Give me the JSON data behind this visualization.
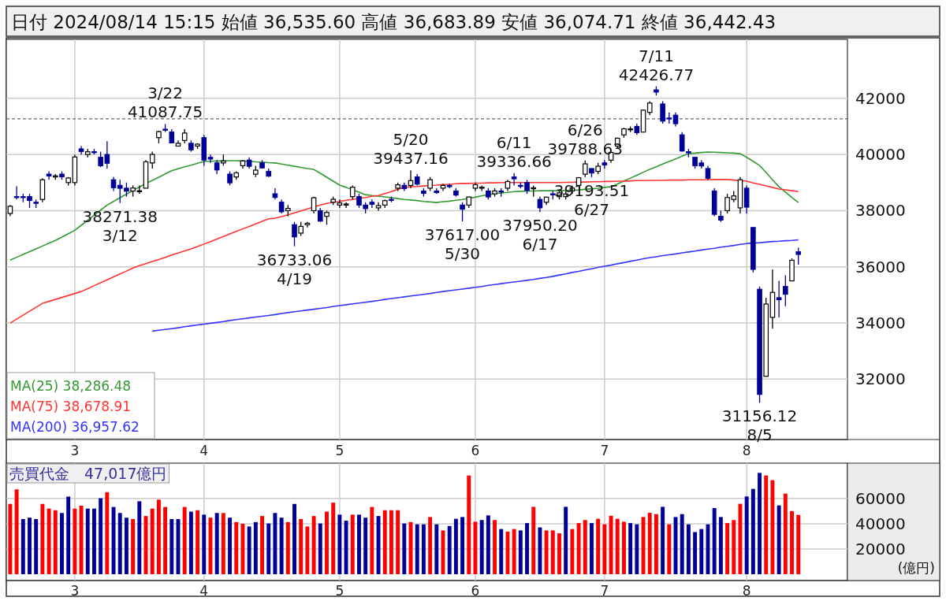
{
  "chart_data": [
    {
      "type": "candlestick",
      "title": "日付 2024/08/14 15:15 始値 36,535.60 高値 36,683.89 安値 36,074.71 終値 36,442.43",
      "categories": [
        null,
        null,
        null,
        null,
        null,
        null,
        null,
        null,
        null,
        null,
        "3",
        null,
        null,
        null,
        null,
        null,
        null,
        null,
        null,
        null,
        null,
        null,
        null,
        null,
        null,
        null,
        null,
        null,
        null,
        null,
        "4",
        null,
        null,
        null,
        null,
        null,
        null,
        null,
        null,
        null,
        null,
        null,
        null,
        null,
        null,
        null,
        null,
        null,
        null,
        null,
        null,
        "5",
        null,
        null,
        null,
        null,
        null,
        null,
        null,
        null,
        null,
        null,
        null,
        null,
        null,
        null,
        null,
        null,
        null,
        null,
        null,
        null,
        "6",
        null,
        null,
        null,
        null,
        null,
        null,
        null,
        null,
        null,
        null,
        null,
        null,
        null,
        null,
        null,
        null,
        null,
        null,
        null,
        "7",
        null,
        null,
        null,
        null,
        null,
        null,
        null,
        null,
        null,
        null,
        null,
        null,
        null,
        null,
        null,
        null,
        null,
        null,
        null,
        null,
        null,
        "8",
        null,
        null,
        null,
        null,
        null,
        null,
        null,
        null
      ],
      "ylim": [
        29850,
        44100
      ],
      "yticks": [
        32000,
        34000,
        36000,
        38000,
        40000,
        42000
      ],
      "grid": true,
      "legend": "bottom left",
      "colors": [
        "#ffffff",
        "#000099",
        "#000099",
        "#000099",
        "#000099",
        "#ffffff",
        "#000099",
        "#ffffff",
        "#000099",
        "#ffffff",
        "#ffffff",
        "#000099",
        "#ffffff",
        "#000099",
        "#000099",
        "#000099",
        "#000099",
        "#000099",
        "#000099",
        "#ffffff",
        "#ffffff",
        "#ffffff",
        "#ffffff",
        "#ffffff",
        "#000099",
        "#000099",
        "#ffffff",
        "#ffffff",
        "#000099",
        "#ffffff",
        "#000099",
        "#000099",
        "#000099",
        "#ffffff",
        "#000099",
        "#ffffff",
        "#ffffff",
        "#000099",
        "#ffffff",
        "#000099",
        "#000099",
        "#000099",
        "#000099",
        "#ffffff",
        "#000099",
        "#ffffff",
        "#ffffff",
        "#ffffff",
        "#000099",
        "#ffffff",
        "#ffffff",
        "#ffffff",
        "#ffffff",
        "#ffffff",
        "#000099",
        "#000099",
        "#000099",
        "#ffffff",
        "#ffffff",
        "#000099",
        "#ffffff",
        "#000099",
        "#ffffff",
        "#000099",
        "#000099",
        "#ffffff",
        "#000099",
        "#ffffff",
        "#000099",
        "#000099",
        "#000099",
        "#ffffff",
        "#ffffff",
        "#ffffff",
        "#000099",
        "#ffffff",
        "#000099",
        "#ffffff",
        "#000099",
        "#000099",
        "#000099",
        "#ffffff",
        "#000099",
        "#ffffff",
        "#000099",
        "#ffffff",
        "#ffffff",
        "#ffffff",
        "#ffffff",
        "#ffffff",
        "#000099",
        "#ffffff",
        "#000099",
        "#ffffff",
        "#ffffff",
        "#ffffff",
        "#ffffff",
        "#000099",
        "#ffffff",
        "#ffffff",
        "#000099",
        "#000099",
        "#000099",
        "#000099",
        "#000099",
        "#000099",
        "#000099",
        "#000099",
        "#000099",
        "#000099",
        "#000099",
        "#ffffff",
        "#ffffff",
        "#ffffff",
        "#000099",
        "#000099",
        "#000099",
        "#ffffff",
        "#ffffff",
        "#000099",
        "#000099",
        "#ffffff",
        "#000099"
      ],
      "ohlc": [
        [
          37900,
          38200,
          37800,
          38158
        ],
        [
          38500,
          38866,
          38400,
          38487
        ],
        [
          38500,
          38600,
          38300,
          38470
        ],
        [
          38500,
          38600,
          38100,
          38364
        ],
        [
          38300,
          38400,
          38100,
          38262
        ],
        [
          38400,
          39156,
          38300,
          39099
        ],
        [
          39300,
          39400,
          39100,
          39234
        ],
        [
          39200,
          39300,
          39100,
          39240
        ],
        [
          39300,
          39400,
          39100,
          39208
        ],
        [
          39000,
          39200,
          38900,
          39166
        ],
        [
          39000,
          39990,
          38900,
          39911
        ],
        [
          40200,
          40300,
          40000,
          40109
        ],
        [
          40000,
          40200,
          39900,
          40098
        ],
        [
          40100,
          40200,
          40000,
          40091
        ],
        [
          39900,
          40100,
          39550,
          39599
        ],
        [
          40000,
          40472,
          39500,
          39689
        ],
        [
          39100,
          39200,
          38700,
          38820
        ],
        [
          38900,
          39100,
          38271.38,
          38798
        ],
        [
          38800,
          39000,
          38500,
          38696
        ],
        [
          38700,
          38900,
          38500,
          38807
        ],
        [
          38700,
          38900,
          38600,
          38708
        ],
        [
          38800,
          39800,
          38800,
          39740
        ],
        [
          39700,
          40100,
          39500,
          40004
        ],
        [
          40600,
          40850,
          40400,
          40816
        ],
        [
          40900,
          41087.75,
          40800,
          40888
        ],
        [
          40800,
          40900,
          40400,
          40414
        ],
        [
          40300,
          40500,
          40300,
          40398
        ],
        [
          40500,
          40900,
          40400,
          40763
        ],
        [
          40400,
          40500,
          40100,
          40168
        ],
        [
          40300,
          40400,
          40200,
          40369
        ],
        [
          40600,
          40700,
          39600,
          39803
        ],
        [
          39900,
          40000,
          39700,
          39839
        ],
        [
          39700,
          39800,
          39300,
          39452
        ],
        [
          39700,
          40000,
          39600,
          39773
        ],
        [
          39300,
          39400,
          38900,
          38992
        ],
        [
          39200,
          39400,
          39100,
          39347
        ],
        [
          39600,
          39800,
          39500,
          39773
        ],
        [
          39800,
          39900,
          39500,
          39582
        ],
        [
          39300,
          39600,
          39200,
          39443
        ],
        [
          39700,
          39800,
          39500,
          39524
        ],
        [
          39400,
          39500,
          39200,
          39233
        ],
        [
          38600,
          38800,
          38400,
          38471
        ],
        [
          38300,
          38400,
          37900,
          37962
        ],
        [
          38000,
          38200,
          37800,
          38080
        ],
        [
          37500,
          37600,
          36733.06,
          37068
        ],
        [
          37200,
          37600,
          37100,
          37439
        ],
        [
          37500,
          37600,
          37400,
          37552
        ],
        [
          38000,
          38500,
          37900,
          38460
        ],
        [
          38000,
          38100,
          37600,
          37628
        ],
        [
          37800,
          38000,
          37500,
          37935
        ],
        [
          38300,
          38500,
          38200,
          38406
        ],
        [
          38200,
          38400,
          38100,
          38274
        ],
        [
          38200,
          38300,
          38100,
          38236
        ],
        [
          38500,
          38900,
          38400,
          38835
        ],
        [
          38500,
          38600,
          38100,
          38202
        ],
        [
          38200,
          38300,
          37900,
          38074
        ],
        [
          38300,
          38400,
          38100,
          38229
        ],
        [
          38100,
          38300,
          38000,
          38179
        ],
        [
          38200,
          38400,
          38100,
          38356
        ],
        [
          38400,
          38500,
          38300,
          38386
        ],
        [
          38800,
          39000,
          38700,
          38920
        ],
        [
          38900,
          39000,
          38700,
          38787
        ],
        [
          38900,
          39437.16,
          38800,
          39070
        ],
        [
          39200,
          39300,
          38900,
          38947
        ],
        [
          38700,
          38800,
          38500,
          38617
        ],
        [
          38800,
          39200,
          38700,
          39103
        ],
        [
          38700,
          38800,
          38600,
          38646
        ],
        [
          38800,
          38950,
          38700,
          38900
        ],
        [
          38900,
          38950,
          38800,
          38855
        ],
        [
          38700,
          38800,
          38500,
          38557
        ],
        [
          38200,
          38300,
          37617.0,
          38054
        ],
        [
          38200,
          38500,
          38100,
          38488
        ],
        [
          38800,
          39000,
          38700,
          38923
        ],
        [
          38800,
          38900,
          38700,
          38837
        ],
        [
          38700,
          38800,
          38400,
          38490
        ],
        [
          38600,
          38800,
          38500,
          38704
        ],
        [
          38700,
          38800,
          38500,
          38684
        ],
        [
          38800,
          39100,
          38700,
          39038
        ],
        [
          39200,
          39336.66,
          38900,
          39135
        ],
        [
          38900,
          39000,
          38800,
          38877
        ],
        [
          39000,
          39100,
          38600,
          38720
        ],
        [
          38800,
          38900,
          38500,
          38815
        ],
        [
          38400,
          38500,
          37950.2,
          38102
        ],
        [
          38300,
          38500,
          38200,
          38482
        ],
        [
          38600,
          38700,
          38400,
          38571
        ],
        [
          38500,
          38700,
          38400,
          38633
        ],
        [
          38500,
          38700,
          38400,
          38596
        ],
        [
          38700,
          38900,
          38600,
          38805
        ],
        [
          38900,
          39200,
          38900,
          39173
        ],
        [
          39300,
          39788.63,
          39200,
          39667
        ],
        [
          39500,
          39500,
          39193.51,
          39342
        ],
        [
          39400,
          39700,
          39300,
          39583
        ],
        [
          39700,
          39800,
          39500,
          39631
        ],
        [
          39800,
          40100,
          39700,
          40075
        ],
        [
          40300,
          40600,
          40200,
          40581
        ],
        [
          40700,
          40950,
          40600,
          40914
        ],
        [
          40900,
          41000,
          40800,
          40912
        ],
        [
          41000,
          41100,
          40700,
          40781
        ],
        [
          40800,
          41600,
          40800,
          41580
        ],
        [
          41500,
          41900,
          41400,
          41832
        ],
        [
          42300,
          42426.77,
          42100,
          42224
        ],
        [
          41800,
          41900,
          41100,
          41191
        ],
        [
          41300,
          41500,
          41100,
          41275
        ],
        [
          41400,
          41500,
          41000,
          41098
        ],
        [
          40700,
          40800,
          40100,
          40126
        ],
        [
          40100,
          40200,
          39900,
          40064
        ],
        [
          39900,
          39900,
          39500,
          39599
        ],
        [
          39700,
          39800,
          39500,
          39594
        ],
        [
          39500,
          39600,
          39100,
          39155
        ],
        [
          38700,
          38800,
          37800,
          37870
        ],
        [
          37800,
          38000,
          37600,
          37667
        ],
        [
          38000,
          38600,
          37900,
          38469
        ],
        [
          38400,
          38700,
          38300,
          38526
        ],
        [
          38100,
          39200,
          37900,
          39102
        ],
        [
          38800,
          38900,
          37900,
          38126
        ],
        [
          37400,
          37400,
          35800,
          35910
        ],
        [
          35200,
          35300,
          31156.12,
          31458
        ],
        [
          32100,
          34900,
          32100,
          34675
        ],
        [
          34200,
          35900,
          33800,
          35090
        ],
        [
          34900,
          35500,
          34200,
          34831
        ],
        [
          35300,
          35700,
          34600,
          35025
        ],
        [
          35500,
          36300,
          35500,
          36233
        ],
        [
          36535.6,
          36683.89,
          36074.71,
          36442.43
        ]
      ],
      "series": [
        {
          "type": "line",
          "name": "MA(25) 38,286.48",
          "color": "#339933",
          "values": [
            36240,
            36340,
            36440,
            36540,
            36640,
            36740,
            36840,
            36940,
            37060,
            37180,
            37300,
            37480,
            37660,
            37840,
            38020,
            38200,
            38330,
            38460,
            38590,
            38720,
            38840,
            38970,
            39080,
            39190,
            39310,
            39420,
            39490,
            39560,
            39620,
            39690,
            39750,
            39760,
            39770,
            39770,
            39780,
            39780,
            39770,
            39760,
            39740,
            39730,
            39710,
            39700,
            39660,
            39620,
            39580,
            39540,
            39500,
            39470,
            39330,
            39190,
            39050,
            38910,
            38830,
            38740,
            38660,
            38570,
            38540,
            38520,
            38490,
            38460,
            38430,
            38400,
            38380,
            38360,
            38330,
            38310,
            38290,
            38320,
            38340,
            38370,
            38400,
            38440,
            38480,
            38530,
            38570,
            38600,
            38630,
            38650,
            38680,
            38690,
            38700,
            38700,
            38710,
            38710,
            38710,
            38710,
            38720,
            38730,
            38740,
            38760,
            38780,
            38800,
            38830,
            38850,
            38950,
            39060,
            39160,
            39260,
            39370,
            39470,
            39560,
            39660,
            39750,
            39840,
            39940,
            40030,
            40050,
            40070,
            40090,
            40080,
            40070,
            40060,
            40050,
            40030,
            39900,
            39760,
            39610,
            39360,
            39100,
            38850,
            38660,
            38470,
            38290
          ]
        },
        {
          "type": "line",
          "name": "MA(75) 38,678.91",
          "color": "#ff3333",
          "values": [
            34000,
            34140,
            34280,
            34420,
            34560,
            34700,
            34770,
            34840,
            34910,
            34980,
            35050,
            35120,
            35220,
            35330,
            35430,
            35540,
            35640,
            35750,
            35850,
            35960,
            36040,
            36110,
            36190,
            36260,
            36340,
            36420,
            36490,
            36570,
            36640,
            36720,
            36810,
            36900,
            36990,
            37080,
            37170,
            37260,
            37350,
            37440,
            37530,
            37620,
            37710,
            37730,
            37790,
            37850,
            37920,
            37990,
            38060,
            38130,
            38200,
            38260,
            38300,
            38330,
            38370,
            38400,
            38440,
            38470,
            38510,
            38540,
            38610,
            38680,
            38760,
            38830,
            38850,
            38860,
            38880,
            38900,
            38910,
            38930,
            38940,
            38960,
            38970,
            38970,
            38980,
            38980,
            38990,
            38990,
            39000,
            39000,
            39000,
            39000,
            39000,
            39000,
            39000,
            39000,
            39000,
            39000,
            39010,
            39010,
            39020,
            39020,
            39030,
            39030,
            39040,
            39040,
            39050,
            39050,
            39060,
            39070,
            39070,
            39080,
            39080,
            39080,
            39090,
            39090,
            39090,
            39100,
            39100,
            39100,
            39100,
            39110,
            39110,
            39110,
            39090,
            39070,
            39050,
            38990,
            38940,
            38880,
            38830,
            38770,
            38740,
            38710,
            38680
          ]
        },
        {
          "type": "line",
          "name": "MA(200) 36,957.62",
          "color": "#3333ff",
          "values": [
            null,
            null,
            null,
            null,
            null,
            null,
            null,
            null,
            null,
            null,
            null,
            null,
            null,
            null,
            null,
            null,
            null,
            null,
            null,
            null,
            null,
            null,
            33710,
            33740,
            33770,
            33800,
            33830,
            33870,
            33900,
            33930,
            33960,
            33990,
            34020,
            34050,
            34090,
            34120,
            34150,
            34180,
            34210,
            34240,
            34270,
            34300,
            34340,
            34370,
            34400,
            34430,
            34460,
            34490,
            34520,
            34550,
            34590,
            34620,
            34650,
            34680,
            34710,
            34740,
            34770,
            34800,
            34840,
            34870,
            34900,
            34930,
            34960,
            34990,
            35020,
            35050,
            35090,
            35120,
            35150,
            35180,
            35210,
            35240,
            35270,
            35300,
            35340,
            35370,
            35400,
            35430,
            35460,
            35490,
            35520,
            35550,
            35590,
            35620,
            35660,
            35710,
            35750,
            35800,
            35840,
            35890,
            35930,
            35980,
            36020,
            36060,
            36110,
            36150,
            36200,
            36240,
            36290,
            36330,
            36360,
            36400,
            36430,
            36460,
            36500,
            36530,
            36560,
            36600,
            36630,
            36660,
            36700,
            36730,
            36760,
            36800,
            36830,
            36850,
            36860,
            36880,
            36900,
            36910,
            36930,
            36940,
            36960
          ]
        }
      ],
      "annotations": [
        {
          "text": "3/22\n41087.75",
          "y": 41087.75
        },
        {
          "text": "38271.38\n3/12",
          "y": 38271.38
        },
        {
          "text": "36733.06\n4/19",
          "y": 36733.06
        },
        {
          "text": "5/20\n39437.16",
          "y": 39437.16
        },
        {
          "text": "37617.00\n5/30",
          "y": 37617.0
        },
        {
          "text": "6/11\n39336.66",
          "y": 39336.66
        },
        {
          "text": "37950.20\n6/17",
          "y": 37950.2
        },
        {
          "text": "6/26\n39788.63",
          "y": 39788.63
        },
        {
          "text": "39193.51\n6/27",
          "y": 39193.51
        },
        {
          "text": "7/11\n42426.77",
          "y": 42426.77
        },
        {
          "text": "31156.12\n8/5",
          "y": 31156.12
        }
      ],
      "ref_lines": [
        {
          "axis": "y",
          "value": 41270,
          "line_style": "dashed",
          "color": "#666666"
        }
      ]
    },
    {
      "type": "bar",
      "title": "売買代金　47,017億円",
      "ylabel": "(億円)",
      "categories": [
        null,
        null,
        null,
        null,
        null,
        null,
        null,
        null,
        null,
        null,
        "3",
        null,
        null,
        null,
        null,
        null,
        null,
        null,
        null,
        null,
        null,
        null,
        null,
        null,
        null,
        null,
        null,
        null,
        null,
        null,
        "4",
        null,
        null,
        null,
        null,
        null,
        null,
        null,
        null,
        null,
        null,
        null,
        null,
        null,
        null,
        null,
        null,
        null,
        null,
        null,
        null,
        "5",
        null,
        null,
        null,
        null,
        null,
        null,
        null,
        null,
        null,
        null,
        null,
        null,
        null,
        null,
        null,
        null,
        null,
        null,
        null,
        null,
        "6",
        null,
        null,
        null,
        null,
        null,
        null,
        null,
        null,
        null,
        null,
        null,
        null,
        null,
        null,
        null,
        null,
        null,
        null,
        null,
        "7",
        null,
        null,
        null,
        null,
        null,
        null,
        null,
        null,
        null,
        null,
        null,
        null,
        null,
        null,
        null,
        null,
        null,
        null,
        null,
        null,
        null,
        "8",
        null,
        null,
        null,
        null,
        null,
        null,
        null,
        null
      ],
      "ylim": [
        -5000,
        88000
      ],
      "yticks": [
        20000,
        40000,
        60000
      ],
      "grid": true,
      "values": [
        55700,
        67200,
        43700,
        44800,
        43700,
        55700,
        52000,
        50700,
        48500,
        61500,
        52000,
        54300,
        52000,
        52000,
        60200,
        65000,
        53300,
        48500,
        44800,
        43700,
        57800,
        46100,
        52000,
        59100,
        53300,
        43700,
        43700,
        53300,
        49600,
        50700,
        47200,
        44800,
        48500,
        48500,
        44800,
        41300,
        40000,
        37800,
        41300,
        46100,
        40200,
        48500,
        44800,
        41300,
        55700,
        43700,
        37800,
        46100,
        40200,
        49600,
        56700,
        47200,
        42400,
        47200,
        47200,
        44800,
        53300,
        46100,
        50700,
        50700,
        50700,
        40200,
        41300,
        39500,
        39500,
        45300,
        39500,
        34700,
        38200,
        43900,
        45300,
        78200,
        41600,
        42900,
        46600,
        42900,
        35800,
        33700,
        35800,
        34700,
        40500,
        53400,
        37100,
        34700,
        34700,
        32400,
        53400,
        35800,
        40500,
        42900,
        40500,
        43900,
        39500,
        46300,
        43900,
        41600,
        40500,
        39500,
        45300,
        48700,
        47600,
        53400,
        39500,
        45300,
        47600,
        39500,
        33400,
        35800,
        39500,
        52400,
        45300,
        40500,
        42900,
        55800,
        61600,
        67600,
        80300,
        78200,
        74500,
        54500,
        63900,
        50000,
        47017
      ],
      "colors": [
        "#ff0000",
        "#ff0000",
        "#000099",
        "#000099",
        "#000099",
        "#ff0000",
        "#ff0000",
        "#ff0000",
        "#000099",
        "#000099",
        "#ff0000",
        "#ff0000",
        "#000099",
        "#000099",
        "#000099",
        "#ff0000",
        "#000099",
        "#000099",
        "#000099",
        "#ff0000",
        "#000099",
        "#ff0000",
        "#ff0000",
        "#ff0000",
        "#ff0000",
        "#000099",
        "#000099",
        "#ff0000",
        "#000099",
        "#ff0000",
        "#000099",
        "#ff0000",
        "#000099",
        "#ff0000",
        "#000099",
        "#ff0000",
        "#ff0000",
        "#000099",
        "#000099",
        "#ff0000",
        "#000099",
        "#000099",
        "#000099",
        "#ff0000",
        "#000099",
        "#ff0000",
        "#ff0000",
        "#ff0000",
        "#000099",
        "#ff0000",
        "#ff0000",
        "#000099",
        "#000099",
        "#ff0000",
        "#000099",
        "#000099",
        "#ff0000",
        "#000099",
        "#ff0000",
        "#ff0000",
        "#ff0000",
        "#000099",
        "#ff0000",
        "#000099",
        "#000099",
        "#ff0000",
        "#000099",
        "#ff0000",
        "#000099",
        "#000099",
        "#000099",
        "#ff0000",
        "#ff0000",
        "#000099",
        "#000099",
        "#ff0000",
        "#000099",
        "#ff0000",
        "#ff0000",
        "#000099",
        "#000099",
        "#ff0000",
        "#000099",
        "#ff0000",
        "#ff0000",
        "#ff0000",
        "#000099",
        "#ff0000",
        "#ff0000",
        "#ff0000",
        "#000099",
        "#ff0000",
        "#ff0000",
        "#ff0000",
        "#ff0000",
        "#ff0000",
        "#000099",
        "#000099",
        "#ff0000",
        "#ff0000",
        "#ff0000",
        "#000099",
        "#ff0000",
        "#000099",
        "#000099",
        "#000099",
        "#000099",
        "#000099",
        "#000099",
        "#000099",
        "#000099",
        "#ff0000",
        "#ff0000",
        "#ff0000",
        "#000099",
        "#000099",
        "#000099",
        "#ff0000",
        "#ff0000",
        "#000099",
        "#ff0000",
        "#ff0000",
        "#ff0000"
      ]
    }
  ]
}
